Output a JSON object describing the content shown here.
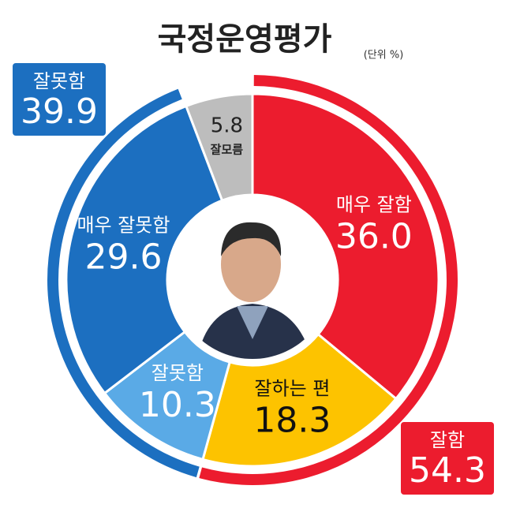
{
  "chart_data": {
    "type": "donut",
    "title": "국정운영평가",
    "subtitle": "(단위 %)",
    "categories": [
      "매우 잘함",
      "잘하는 편",
      "잘못함",
      "매우 잘못함",
      "잘모름"
    ],
    "values": [
      36.0,
      18.3,
      10.3,
      29.6,
      5.8
    ],
    "value_labels": [
      "36.0",
      "18.3",
      "10.3",
      "29.6",
      "5.8"
    ],
    "colors": [
      "#ec1c2e",
      "#fdc300",
      "#5aaae6",
      "#1c6fc0",
      "#bdbdbd"
    ],
    "groups": [
      {
        "name": "잘함",
        "value": 54.3,
        "color": "#ec1c2e"
      },
      {
        "name": "잘못함",
        "value": 39.9,
        "color": "#1c6fc0"
      }
    ]
  }
}
